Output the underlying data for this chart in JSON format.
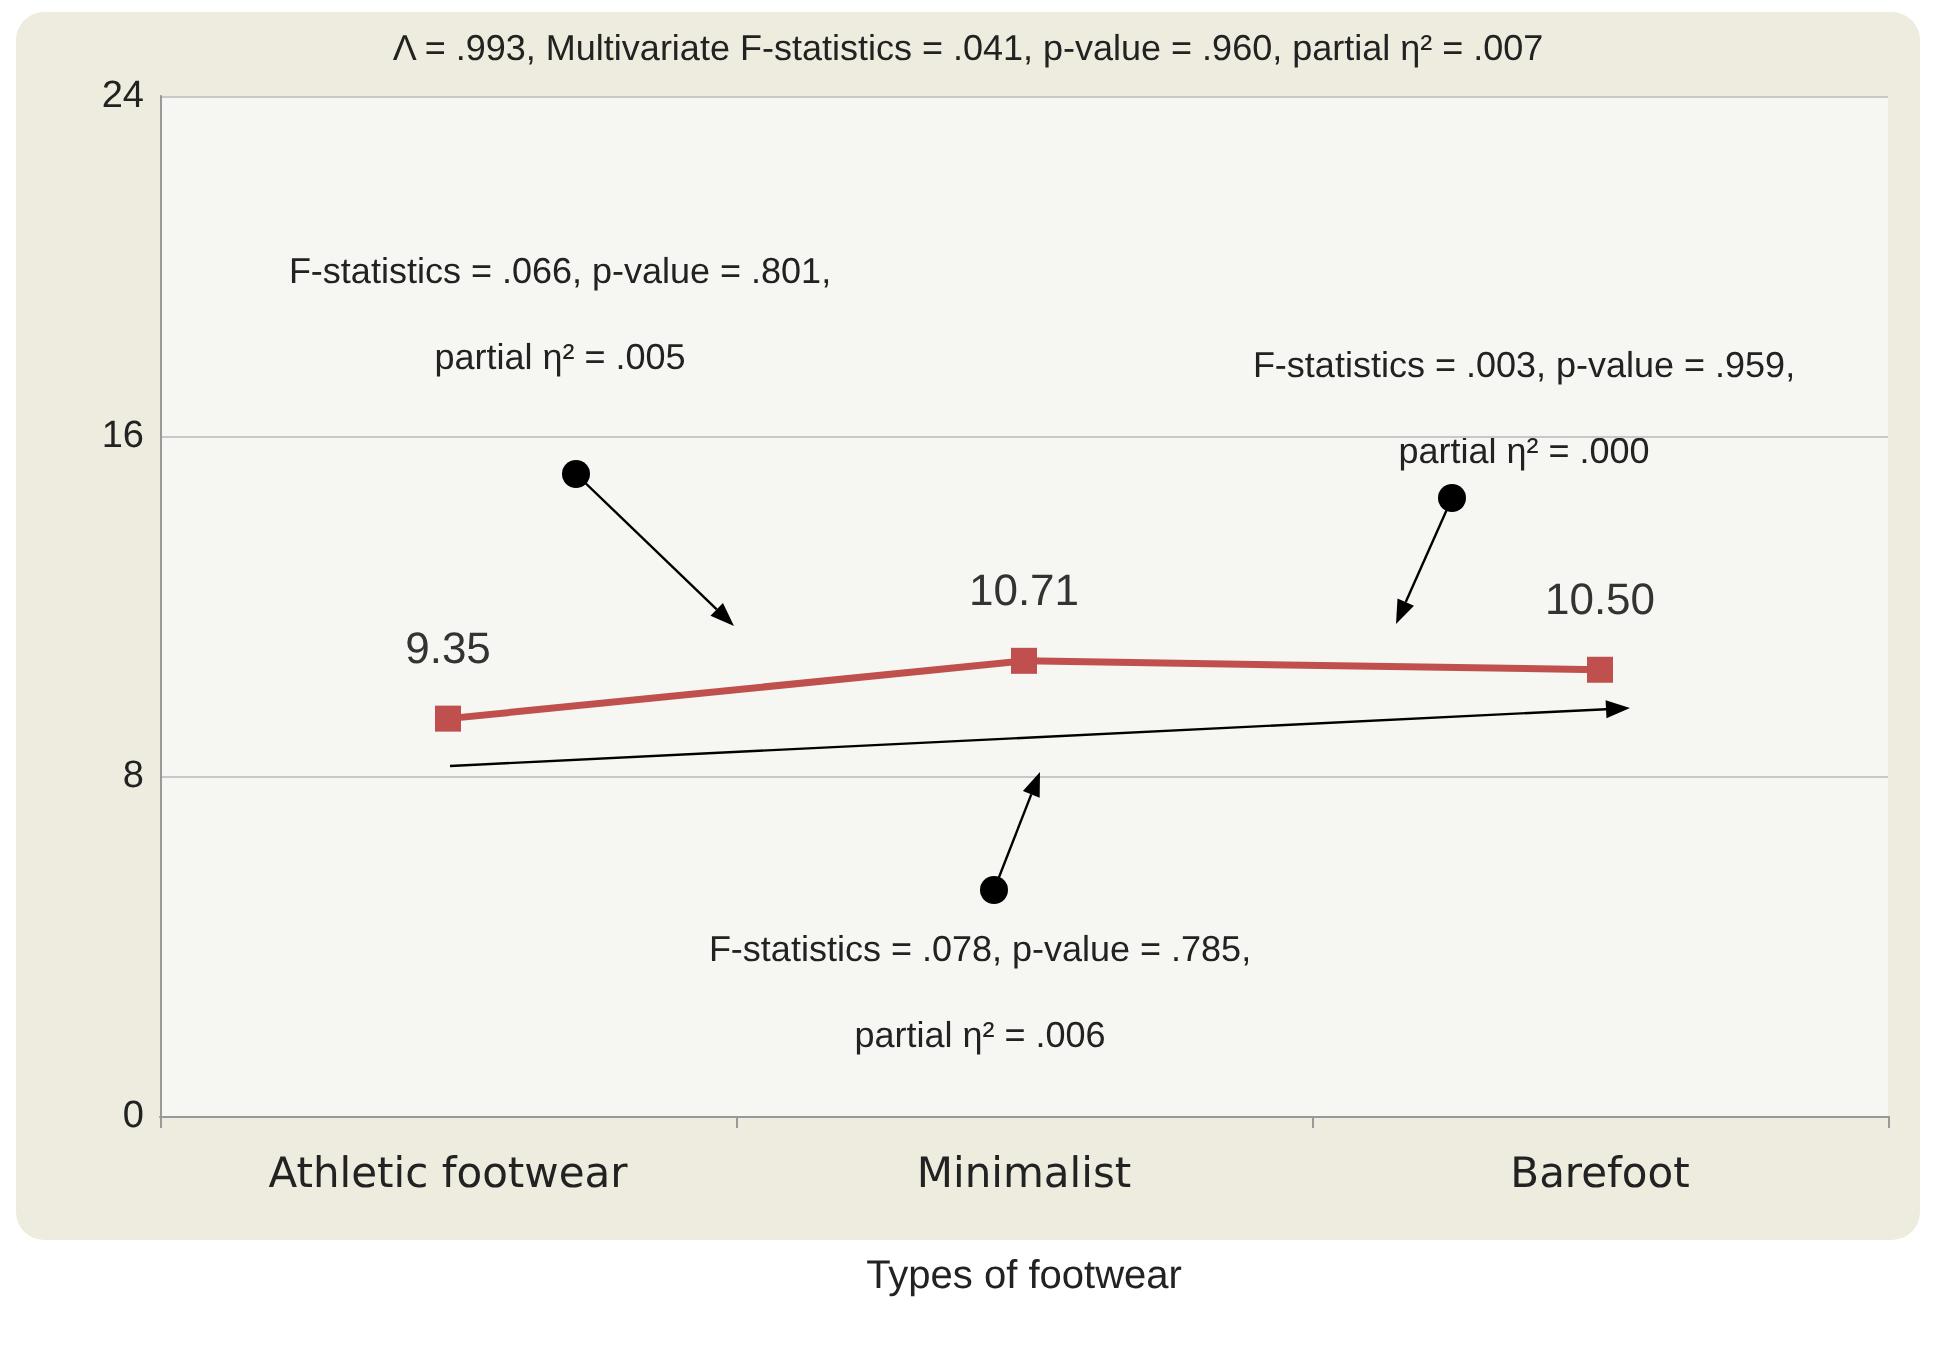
{
  "chart_data": {
    "type": "line",
    "title": "Λ = .993, Multivariate F-statistics = .041, p-value = .960, partial η² = .007",
    "xlabel": "Types of footwear",
    "categories": [
      "Athletic footwear",
      "Minimalist",
      "Barefoot"
    ],
    "series": [
      {
        "color": "#c0504d",
        "values": [
          9.35,
          10.71,
          10.5
        ],
        "value_labels": [
          "9.35",
          "10.71",
          "10.50"
        ]
      }
    ],
    "ylim": [
      0,
      24
    ],
    "yticks": [
      0,
      8,
      16,
      24
    ],
    "grid": "y",
    "marker": "square",
    "line_style": "solid",
    "annotations": [
      "F-statistics = .066, p-value = .801,\npartial η² = .005",
      "F-statistics = .003, p-value = .959,\npartial η² = .000",
      "F-statistics = .078, p-value = .785,\npartial η² = .006"
    ]
  }
}
